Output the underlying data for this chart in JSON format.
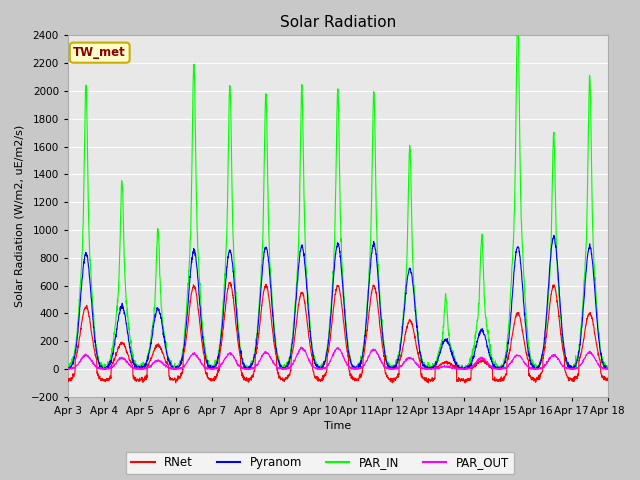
{
  "title": "Solar Radiation",
  "ylabel": "Solar Radiation (W/m2, uE/m2/s)",
  "xlabel": "Time",
  "ylim": [
    -200,
    2400
  ],
  "yticks": [
    -200,
    0,
    200,
    400,
    600,
    800,
    1000,
    1200,
    1400,
    1600,
    1800,
    2000,
    2200,
    2400
  ],
  "x_tick_labels": [
    "Apr 3",
    "Apr 4",
    "Apr 5",
    "Apr 6",
    "Apr 7",
    "Apr 8",
    "Apr 9",
    "Apr 10",
    "Apr 11",
    "Apr 12",
    "Apr 13",
    "Apr 14",
    "Apr 15",
    "Apr 16",
    "Apr 17",
    "Apr 18"
  ],
  "legend_labels": [
    "RNet",
    "Pyranom",
    "PAR_IN",
    "PAR_OUT"
  ],
  "legend_colors": [
    "red",
    "blue",
    "#00ff00",
    "magenta"
  ],
  "annotation_text": "TW_met",
  "annotation_bg": "#ffffcc",
  "annotation_border": "#ccaa00",
  "grid_color": "#ffffff",
  "fig_bg": "#c8c8c8",
  "plot_bg": "#e8e8e8",
  "series_colors": [
    "red",
    "blue",
    "#00ff00",
    "magenta"
  ],
  "series_linewidths": [
    0.8,
    0.8,
    0.8,
    0.8
  ],
  "n_days": 15,
  "pts_per_day": 144,
  "figsize": [
    6.4,
    4.8
  ],
  "dpi": 100,
  "par_in_peaks": [
    2050,
    1350,
    1010,
    2200,
    2050,
    1980,
    2020,
    2010,
    2000,
    1600,
    520,
    950,
    2550,
    1700,
    2100
  ],
  "pyra_peaks": [
    830,
    450,
    430,
    850,
    850,
    880,
    880,
    900,
    900,
    720,
    210,
    280,
    880,
    950,
    880
  ],
  "rnet_peaks": [
    450,
    190,
    170,
    600,
    620,
    600,
    550,
    600,
    600,
    350,
    50,
    60,
    400,
    600,
    400
  ],
  "par_out_peaks": [
    100,
    80,
    60,
    110,
    110,
    120,
    150,
    150,
    140,
    80,
    20,
    80,
    100,
    100,
    120
  ]
}
